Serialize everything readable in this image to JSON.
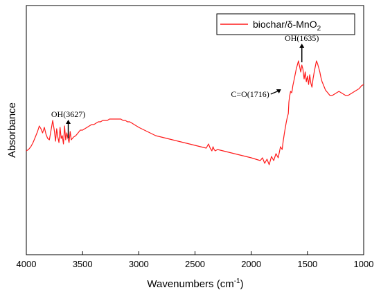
{
  "chart_data": {
    "type": "line",
    "title": "",
    "xlabel": "Wavenumbers (cm",
    "xlabel_sup": "-1",
    "xlabel_end": ")",
    "ylabel": "Absorbance",
    "xlim": [
      4000,
      1000
    ],
    "x_reversed": true,
    "y_ticks_shown": false,
    "grid": false,
    "legend_position": "top-right",
    "x_ticks": [
      4000,
      3500,
      3000,
      2500,
      2000,
      1500,
      1000
    ],
    "series": [
      {
        "name": "biochar/δ-MnO",
        "name_sub": "2",
        "color": "#ff1a1a",
        "x": [
          4000,
          3980,
          3960,
          3940,
          3920,
          3900,
          3885,
          3870,
          3855,
          3840,
          3825,
          3810,
          3795,
          3780,
          3765,
          3750,
          3740,
          3730,
          3720,
          3710,
          3700,
          3690,
          3680,
          3670,
          3660,
          3650,
          3640,
          3630,
          3620,
          3610,
          3600,
          3580,
          3560,
          3540,
          3520,
          3500,
          3480,
          3460,
          3440,
          3420,
          3400,
          3380,
          3360,
          3340,
          3320,
          3300,
          3280,
          3260,
          3240,
          3220,
          3200,
          3180,
          3160,
          3140,
          3120,
          3100,
          3080,
          3060,
          3040,
          3020,
          3000,
          2950,
          2900,
          2850,
          2800,
          2750,
          2700,
          2650,
          2600,
          2550,
          2500,
          2450,
          2400,
          2380,
          2365,
          2350,
          2340,
          2330,
          2320,
          2300,
          2250,
          2200,
          2150,
          2100,
          2050,
          2000,
          1960,
          1920,
          1900,
          1880,
          1860,
          1840,
          1820,
          1800,
          1780,
          1760,
          1740,
          1725,
          1716,
          1705,
          1690,
          1680,
          1670,
          1665,
          1660,
          1650,
          1640,
          1635,
          1630,
          1620,
          1610,
          1600,
          1590,
          1580,
          1570,
          1560,
          1550,
          1540,
          1530,
          1520,
          1510,
          1500,
          1490,
          1480,
          1470,
          1460,
          1450,
          1440,
          1430,
          1420,
          1410,
          1400,
          1390,
          1380,
          1370,
          1360,
          1350,
          1340,
          1330,
          1320,
          1310,
          1300,
          1280,
          1260,
          1240,
          1220,
          1200,
          1180,
          1160,
          1140,
          1120,
          1100,
          1080,
          1060,
          1040,
          1020,
          1000
        ],
        "y": [
          0.35,
          0.36,
          0.38,
          0.41,
          0.45,
          0.49,
          0.53,
          0.51,
          0.48,
          0.52,
          0.47,
          0.44,
          0.43,
          0.5,
          0.57,
          0.49,
          0.42,
          0.51,
          0.45,
          0.41,
          0.52,
          0.44,
          0.46,
          0.4,
          0.53,
          0.43,
          0.48,
          0.44,
          0.41,
          0.49,
          0.43,
          0.45,
          0.46,
          0.48,
          0.5,
          0.5,
          0.51,
          0.52,
          0.53,
          0.54,
          0.54,
          0.55,
          0.56,
          0.56,
          0.57,
          0.57,
          0.57,
          0.58,
          0.58,
          0.58,
          0.58,
          0.58,
          0.58,
          0.57,
          0.57,
          0.56,
          0.56,
          0.55,
          0.54,
          0.53,
          0.52,
          0.5,
          0.48,
          0.46,
          0.45,
          0.44,
          0.43,
          0.42,
          0.41,
          0.4,
          0.39,
          0.38,
          0.37,
          0.4,
          0.37,
          0.35,
          0.38,
          0.36,
          0.35,
          0.36,
          0.35,
          0.34,
          0.33,
          0.32,
          0.31,
          0.3,
          0.29,
          0.28,
          0.3,
          0.26,
          0.29,
          0.25,
          0.31,
          0.28,
          0.33,
          0.3,
          0.38,
          0.36,
          0.42,
          0.48,
          0.55,
          0.59,
          0.62,
          0.7,
          0.74,
          0.78,
          0.77,
          0.79,
          0.82,
          0.86,
          0.9,
          0.94,
          0.97,
          1.0,
          0.96,
          0.92,
          0.97,
          0.94,
          0.87,
          0.92,
          0.85,
          0.89,
          0.83,
          0.9,
          0.84,
          0.81,
          0.87,
          0.92,
          0.96,
          1.0,
          0.98,
          0.95,
          0.92,
          0.88,
          0.85,
          0.83,
          0.81,
          0.79,
          0.78,
          0.77,
          0.76,
          0.75,
          0.75,
          0.76,
          0.77,
          0.78,
          0.77,
          0.76,
          0.75,
          0.75,
          0.76,
          0.77,
          0.78,
          0.79,
          0.8,
          0.82,
          0.83
        ]
      }
    ],
    "annotations": [
      {
        "text": "OH(3627)",
        "x": 3627,
        "y": 0.44,
        "arrow": "up"
      },
      {
        "text": "C=O(1716)",
        "x": 1716,
        "y": 0.8,
        "arrow": "up-right"
      },
      {
        "text": "OH(1635)",
        "x": 1550,
        "y": 0.99,
        "arrow": "up"
      }
    ],
    "y_range": [
      -0.4,
      1.4
    ]
  }
}
